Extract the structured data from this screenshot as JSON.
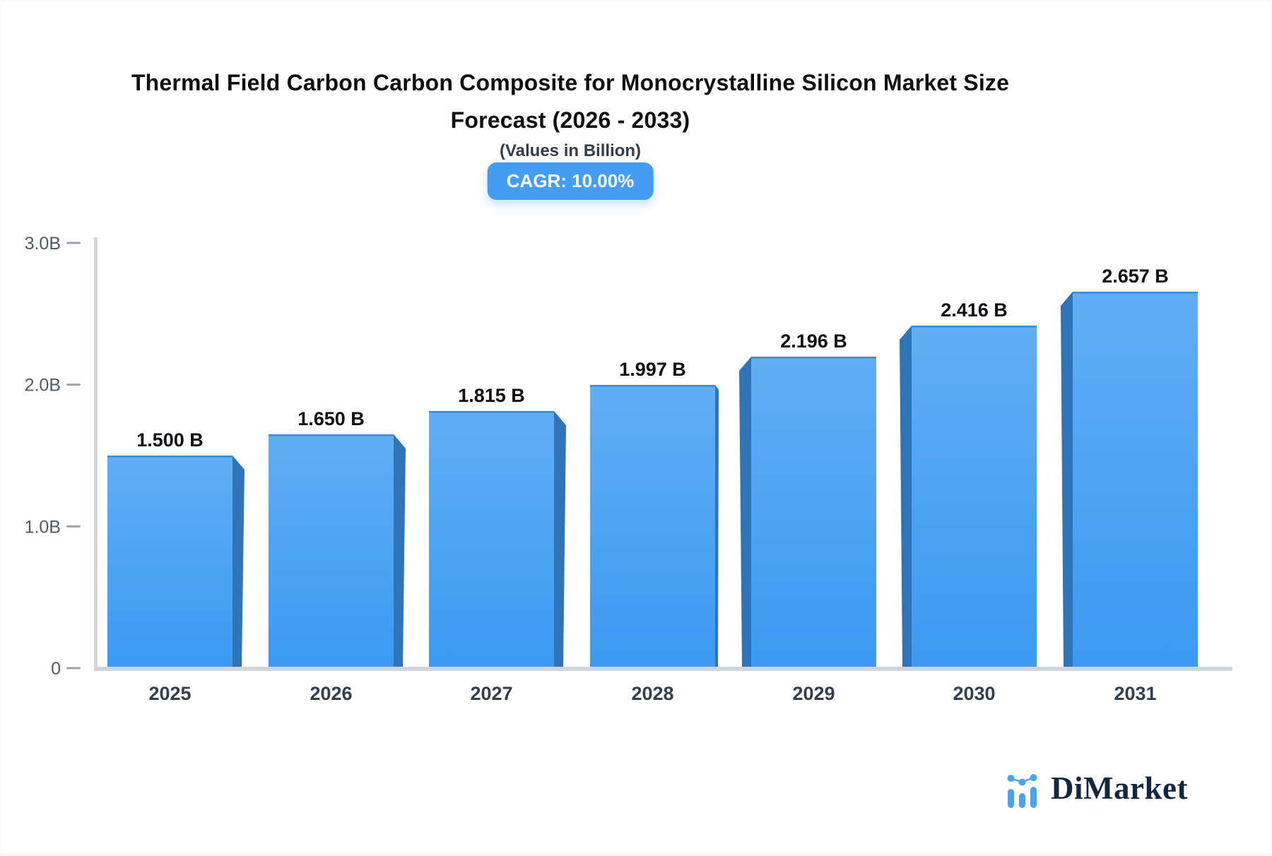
{
  "chart_data": {
    "type": "bar",
    "title_lines": [
      "Thermal Field Carbon Carbon Composite for Monocrystalline Silicon Market Size",
      "Forecast (2026 - 2033)"
    ],
    "subtitle": "(Values in Billion)",
    "cagr_label": "CAGR: 10.00%",
    "categories": [
      "2025",
      "2026",
      "2027",
      "2028",
      "2029",
      "2030",
      "2031"
    ],
    "values": [
      1.5,
      1.65,
      1.815,
      1.997,
      2.196,
      2.416,
      2.657
    ],
    "value_labels": [
      "1.500 B",
      "1.650 B",
      "1.815 B",
      "1.997 B",
      "2.196 B",
      "2.416 B",
      "2.657 B"
    ],
    "y_ticks": [
      {
        "label": "0",
        "value": 0
      },
      {
        "label": "1.0B",
        "value": 1.0
      },
      {
        "label": "2.0B",
        "value": 2.0
      },
      {
        "label": "3.0B",
        "value": 3.0
      }
    ],
    "ylim": [
      0,
      3.0
    ],
    "grid": false,
    "legend_position": "none",
    "colors": {
      "bar_face_top": "#60aef5",
      "bar_face_bottom": "#3b9af1",
      "bar_side": "#2e74b6",
      "bar_top_edge": "#2a7ec7",
      "axis_line": "#d4d8df",
      "baseline": "#d2d6dc",
      "tick_mark": "#9aa3b0",
      "tick_label": "#4d5a68",
      "x_label": "#323f4f",
      "value_label": "#0c0e11",
      "badge_bg": "#459df2",
      "badge_text": "#ffffff",
      "logo_blue": "#4aa2f0",
      "logo_text_color": "#152740"
    }
  },
  "branding": {
    "logo_text": "DiMarket"
  }
}
